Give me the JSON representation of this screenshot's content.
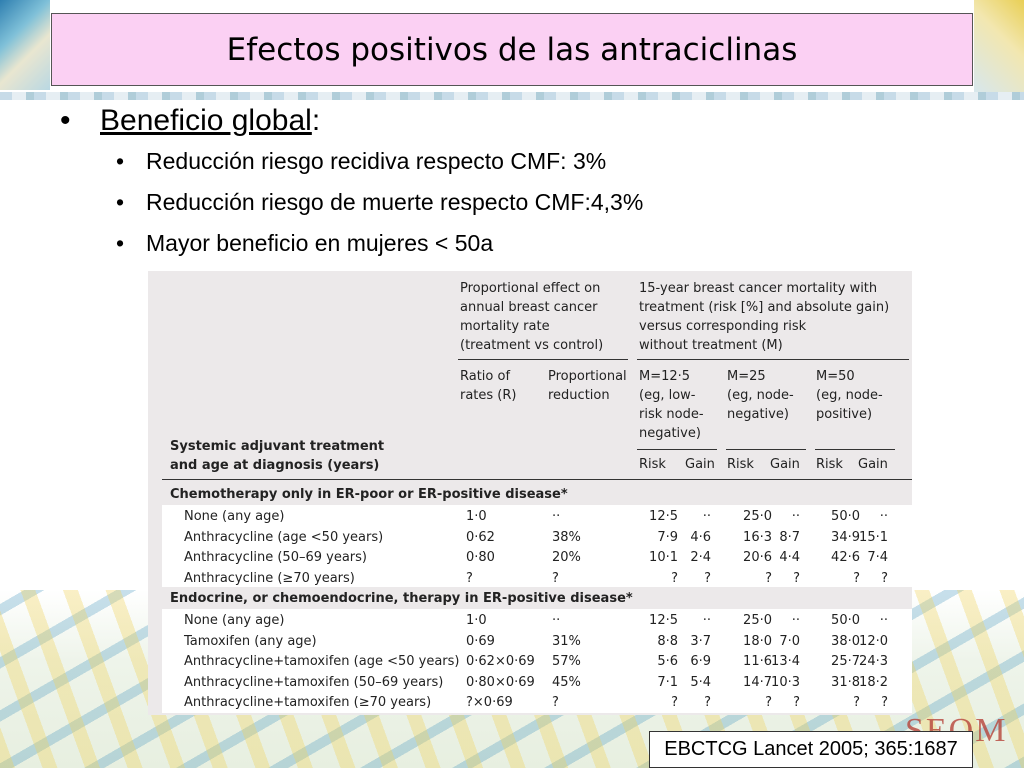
{
  "title": "Efectos positivos de las antraciclinas",
  "bullets": {
    "main_label": "Beneficio global",
    "main_suffix": ":",
    "items": [
      "Reducción riesgo recidiva respecto CMF: 3%",
      "Reducción riesgo de muerte respecto CMF:4,3%",
      "Mayor beneficio en mujeres < 50a"
    ]
  },
  "table": {
    "col_header_left": [
      "Systemic adjuvant treatment",
      "and age at diagnosis (years)"
    ],
    "group1_header": [
      "Proportional effect on",
      "annual breast cancer",
      "mortality rate",
      "(treatment vs control)"
    ],
    "group2_header": [
      "15-year breast cancer mortality with",
      "treatment (risk [%] and absolute gain)",
      "versus corresponding risk",
      "without treatment (M)"
    ],
    "ratio_header": [
      "Ratio of",
      "rates (R)"
    ],
    "prop_header": [
      "Proportional",
      "reduction"
    ],
    "m1_header": [
      "M=12·5",
      "(eg, low-",
      "risk node-",
      "negative)"
    ],
    "m2_header": [
      "M=25",
      "(eg, node-",
      "negative)"
    ],
    "m3_header": [
      "M=50",
      "(eg, node-",
      "positive)"
    ],
    "risk_label": "Risk",
    "gain_label": "Gain",
    "sections": [
      {
        "title": "Chemotherapy only in ER-poor or ER-positive disease*",
        "rows": [
          [
            "None (any age)",
            "1·0",
            "··",
            "12·5",
            "··",
            "25·0",
            "··",
            "50·0",
            "··"
          ],
          [
            "Anthracycline (age <50 years)",
            "0·62",
            "38%",
            "7·9",
            "4·6",
            "16·3",
            "8·7",
            "34·9",
            "15·1"
          ],
          [
            "Anthracycline (50–69 years)",
            "0·80",
            "20%",
            "10·1",
            "2·4",
            "20·6",
            "4·4",
            "42·6",
            "7·4"
          ],
          [
            "Anthracycline (≥70 years)",
            "?",
            "?",
            "?",
            "?",
            "?",
            "?",
            "?",
            "?"
          ]
        ]
      },
      {
        "title": "Endocrine, or chemoendocrine, therapy in ER-positive disease*",
        "rows": [
          [
            "None (any age)",
            "1·0",
            "··",
            "12·5",
            "··",
            "25·0",
            "··",
            "50·0",
            "··"
          ],
          [
            "Tamoxifen (any age)",
            "0·69",
            "31%",
            "8·8",
            "3·7",
            "18·0",
            "7·0",
            "38·0",
            "12·0"
          ],
          [
            "Anthracycline+tamoxifen (age <50 years)",
            "0·62×0·69",
            "57%",
            "5·6",
            "6·9",
            "11·6",
            "13·4",
            "25·7",
            "24·3"
          ],
          [
            "Anthracycline+tamoxifen (50–69 years)",
            "0·80×0·69",
            "45%",
            "7·1",
            "5·4",
            "14·7",
            "10·3",
            "31·8",
            "18·2"
          ],
          [
            "Anthracycline+tamoxifen (≥70 years)",
            "?×0·69",
            "?",
            "?",
            "?",
            "?",
            "?",
            "?",
            "?"
          ]
        ]
      }
    ]
  },
  "reference": "EBCTCG Lancet 2005; 365:1687",
  "logo_text": "SEOM"
}
